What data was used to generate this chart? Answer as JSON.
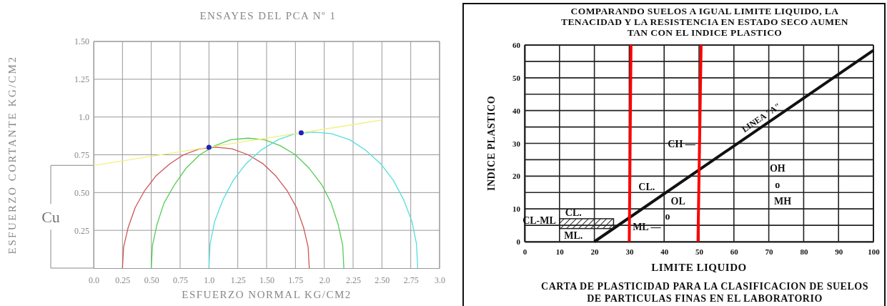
{
  "chart_data": [
    {
      "type": "line",
      "title": "ENSAYES DEL PCA Nº 1",
      "xlabel": "ESFUERZO NORMAL KG/CM2",
      "ylabel": "ESFUERZO CORTANTE KG/CM2",
      "xlim": [
        0,
        3
      ],
      "ylim": [
        0,
        1.5
      ],
      "xticks": [
        {
          "value": 0,
          "label": "0.0"
        },
        0.25,
        {
          "value": 0.5,
          "label": "0.50"
        },
        0.75,
        {
          "value": 1,
          "label": "1.0"
        },
        1.25,
        {
          "value": 1.5,
          "label": "1.50"
        },
        1.75,
        {
          "value": 2,
          "label": "2.0"
        },
        2.25,
        {
          "value": 2.5,
          "label": "2.50"
        },
        2.75,
        {
          "value": 3,
          "label": "3.0"
        }
      ],
      "yticks": [
        0.25,
        {
          "value": 0.5,
          "label": "0.50"
        },
        0.75,
        {
          "value": 1,
          "label": "1.0"
        },
        1.25,
        {
          "value": 1.5,
          "label": "1.50"
        }
      ],
      "grid": true,
      "series": [
        {
          "color": "#cc5555",
          "x": [
            0.25,
            0.26,
            0.3,
            0.36,
            0.44,
            0.54,
            0.66,
            0.78,
            0.92,
            1.06,
            1.2,
            1.34,
            1.47,
            1.58,
            1.68,
            1.76,
            1.82,
            1.86,
            1.87
          ],
          "values": [
            0,
            0.14,
            0.27,
            0.4,
            0.51,
            0.61,
            0.69,
            0.75,
            0.79,
            0.8,
            0.79,
            0.75,
            0.69,
            0.61,
            0.51,
            0.4,
            0.27,
            0.14,
            0
          ]
        },
        {
          "color": "#55cc55",
          "x": [
            0.5,
            0.51,
            0.55,
            0.61,
            0.7,
            0.8,
            0.92,
            1.05,
            1.19,
            1.34,
            1.48,
            1.62,
            1.75,
            1.87,
            1.98,
            2.06,
            2.12,
            2.16,
            2.17
          ],
          "values": [
            0,
            0.15,
            0.29,
            0.43,
            0.55,
            0.66,
            0.75,
            0.81,
            0.85,
            0.86,
            0.85,
            0.81,
            0.75,
            0.66,
            0.55,
            0.43,
            0.29,
            0.15,
            0
          ]
        },
        {
          "color": "#55dddd",
          "x": [
            1.0,
            1.01,
            1.05,
            1.12,
            1.21,
            1.32,
            1.45,
            1.6,
            1.75,
            1.91,
            2.06,
            2.22,
            2.36,
            2.49,
            2.6,
            2.69,
            2.76,
            2.8,
            2.81
          ],
          "values": [
            0,
            0.16,
            0.31,
            0.45,
            0.58,
            0.69,
            0.78,
            0.85,
            0.89,
            0.9,
            0.89,
            0.85,
            0.78,
            0.69,
            0.58,
            0.45,
            0.31,
            0.16,
            0
          ]
        },
        {
          "color": "#f0f080",
          "x": [
            0,
            2.5
          ],
          "values": [
            0.68,
            0.98
          ]
        },
        {
          "type": "scatter",
          "color": "#2020c0",
          "x": [
            1.0,
            1.8
          ],
          "values": [
            0.8,
            0.895
          ]
        }
      ],
      "annotations": [
        "Cu"
      ]
    },
    {
      "type": "line",
      "title": "COMPARANDO SUELOS A IGUAL LIMITE LIQUIDO, LA\nTENACIDAD Y LA RESISTENCIA EN ESTADO SECO AUMEN\nTAN CON EL INDICE PLASTICO",
      "xlabel": "LIMITE LIQUIDO",
      "ylabel": "INDICE PLASTICO",
      "xlim": [
        0,
        100
      ],
      "ylim": [
        0,
        60
      ],
      "xticks": [
        0,
        10,
        20,
        30,
        40,
        50,
        60,
        70,
        80,
        90,
        100
      ],
      "yticks": [
        0,
        {
          "value": 5,
          "label": null
        },
        10,
        {
          "value": 15,
          "label": null
        },
        20,
        {
          "value": 25,
          "label": null
        },
        30,
        {
          "value": 35,
          "label": null
        },
        40,
        {
          "value": 45,
          "label": null
        },
        50,
        {
          "value": 55,
          "label": null
        },
        60
      ],
      "grid": true,
      "series": [
        {
          "color": "#111111",
          "x": [
            20,
            100
          ],
          "values": [
            0,
            58.4
          ]
        },
        {
          "color": "#ff0000",
          "x": [
            30,
            30.5
          ],
          "values": [
            0,
            60
          ]
        },
        {
          "color": "#ff0000",
          "x": [
            49.7,
            50.6
          ],
          "values": [
            0,
            60
          ]
        }
      ],
      "annotations": [
        "LINEA \"A\"",
        "CH —",
        "CL.",
        "OL",
        "ML —",
        "o",
        "OH",
        "o",
        "MH",
        "CL.",
        "CL-ML",
        "ML.",
        "CARTA DE PLASTICIDAD PARA LA CLASIFICACION DE SUELOS\nDE PARTICULAS FINAS EN EL LABORATORIO"
      ]
    }
  ]
}
